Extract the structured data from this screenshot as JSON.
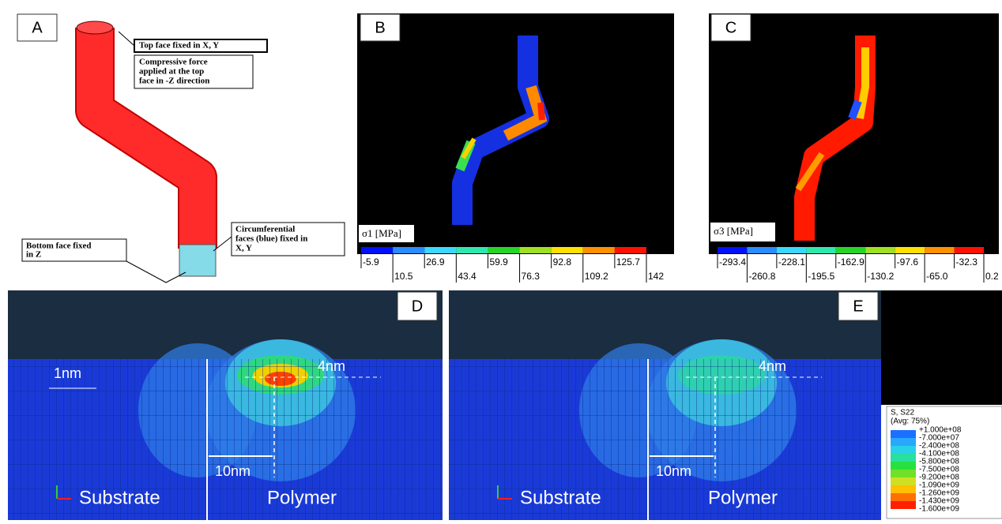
{
  "panel_a": {
    "label": "A",
    "top_face": [
      "Top face fixed in X, Y"
    ],
    "force": [
      "Compressive force",
      "applied at the top",
      "face in -Z direction"
    ],
    "bottom_face": [
      "Bottom face fixed",
      "in Z"
    ],
    "circumferential": [
      "Circumferential",
      "faces (blue) fixed in",
      "X, Y"
    ]
  },
  "panel_b": {
    "label": "B",
    "legend_title": "σ1 [MPa]",
    "scale": [
      "-5.9",
      "10.5",
      "26.9",
      "43.4",
      "59.9",
      "76.3",
      "92.8",
      "109.2",
      "125.7",
      "142"
    ]
  },
  "panel_c": {
    "label": "C",
    "legend_title": "σ3 [MPa]",
    "scale": [
      "-293.4",
      "-260.8",
      "-228.1",
      "-195.5",
      "-162.9",
      "-130.2",
      "-97.6",
      "-65.0",
      "-32.3",
      "0.2"
    ]
  },
  "panel_d": {
    "label": "D",
    "spacing": "1nm",
    "depth": "4nm",
    "width": "10nm",
    "left_region": "Substrate",
    "right_region": "Polymer"
  },
  "panel_e": {
    "label": "E",
    "depth": "4nm",
    "width": "10nm",
    "left_region": "Substrate",
    "right_region": "Polymer"
  },
  "legend": {
    "title": "S, S22",
    "subtitle": "(Avg: 75%)",
    "levels": [
      "+1.000e+08",
      "-7.000e+07",
      "-2.400e+08",
      "-4.100e+08",
      "-5.800e+08",
      "-7.500e+08",
      "-9.200e+08",
      "-1.090e+09",
      "-1.260e+09",
      "-1.430e+09",
      "-1.600e+09"
    ]
  }
}
